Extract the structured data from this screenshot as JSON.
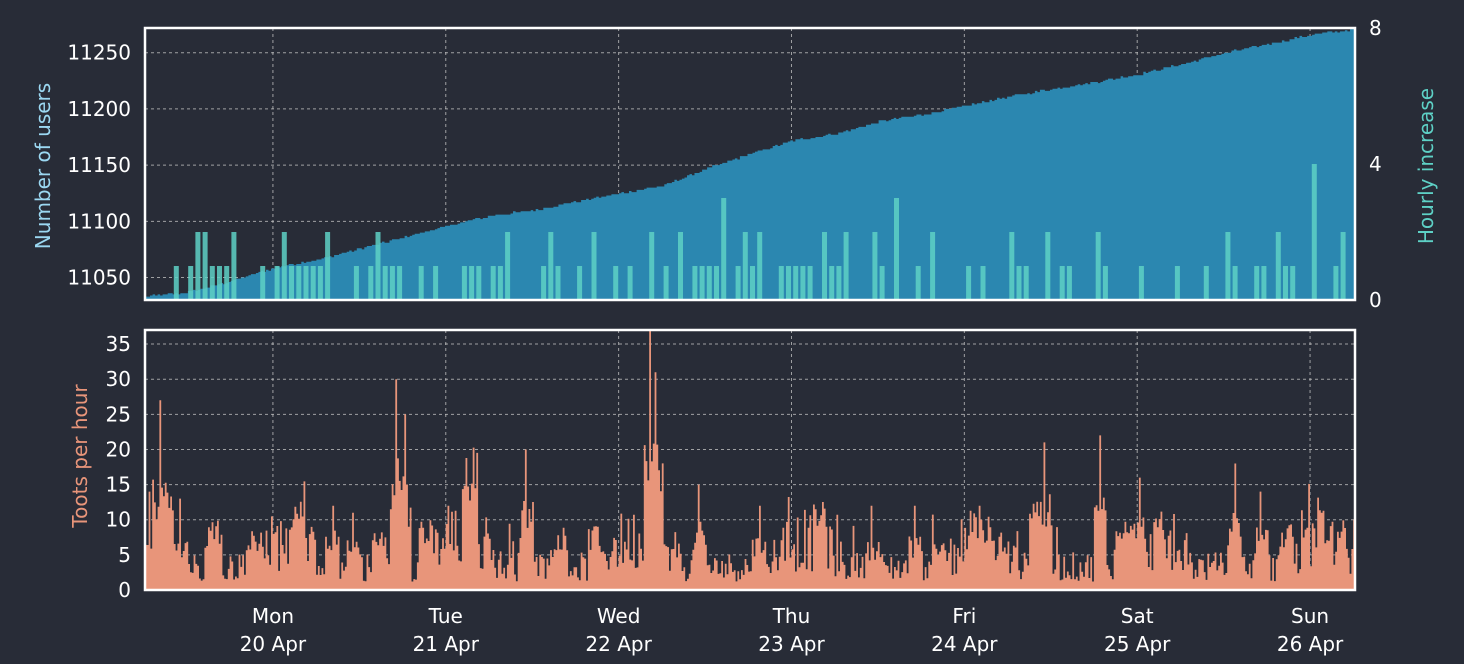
{
  "colors": {
    "background": "#282c37",
    "users_fill": "#2b87b0",
    "users_label": "#9bd8f2",
    "hourly_fill": "#5ed1c6",
    "hourly_label": "#5ed1c6",
    "toots_fill": "#e8957a",
    "toots_label": "#e8957a",
    "frame": "#ffffff",
    "grid": "#c8c8c8"
  },
  "chart_data": [
    {
      "type": "area",
      "ylabel": "Number of users",
      "y2label": "Hourly increase",
      "ylim": [
        11030,
        11272
      ],
      "y2lim": [
        0,
        8
      ],
      "yticks": [
        11050,
        11100,
        11150,
        11200,
        11250
      ],
      "y2ticks": [
        0,
        4,
        8
      ],
      "x_range_days": [
        0,
        7
      ],
      "grid": true,
      "series": [
        {
          "type": "area",
          "key": "users",
          "points": [
            [
              0,
              11033
            ],
            [
              0.25,
              11037
            ],
            [
              0.5,
              11047
            ],
            [
              0.75,
              11059
            ],
            [
              1.0,
              11066
            ],
            [
              1.25,
              11076
            ],
            [
              1.5,
              11086
            ],
            [
              1.75,
              11096
            ],
            [
              2.0,
              11105
            ],
            [
              2.25,
              11110
            ],
            [
              2.5,
              11118
            ],
            [
              2.75,
              11125
            ],
            [
              3.0,
              11132
            ],
            [
              3.25,
              11147
            ],
            [
              3.5,
              11160
            ],
            [
              3.75,
              11172
            ],
            [
              4.0,
              11178
            ],
            [
              4.25,
              11189
            ],
            [
              4.5,
              11195
            ],
            [
              4.75,
              11203
            ],
            [
              5.0,
              11211
            ],
            [
              5.25,
              11218
            ],
            [
              5.5,
              11224
            ],
            [
              5.75,
              11231
            ],
            [
              6.0,
              11240
            ],
            [
              6.25,
              11250
            ],
            [
              6.5,
              11258
            ],
            [
              6.75,
              11266
            ],
            [
              7.0,
              11271
            ]
          ]
        },
        {
          "type": "bar",
          "key": "hourly_increase",
          "axis": "y2",
          "spikes": [
            [
              0.3,
              2
            ],
            [
              0.35,
              2
            ],
            [
              0.5,
              2
            ],
            [
              0.8,
              2
            ],
            [
              1.05,
              2
            ],
            [
              1.35,
              2
            ],
            [
              2.1,
              2
            ],
            [
              2.35,
              2
            ],
            [
              2.6,
              2
            ],
            [
              2.9,
              2
            ],
            [
              3.1,
              2
            ],
            [
              3.35,
              3
            ],
            [
              3.45,
              2
            ],
            [
              3.55,
              2
            ],
            [
              3.9,
              2
            ],
            [
              4.05,
              2
            ],
            [
              4.2,
              2
            ],
            [
              4.35,
              3
            ],
            [
              4.55,
              2
            ],
            [
              5.0,
              2
            ],
            [
              5.2,
              2
            ],
            [
              5.5,
              2
            ],
            [
              6.25,
              2
            ],
            [
              6.55,
              2
            ],
            [
              6.75,
              4
            ],
            [
              6.9,
              2
            ]
          ]
        }
      ]
    },
    {
      "type": "bar",
      "ylabel": "Toots per hour",
      "ylim": [
        0,
        37
      ],
      "yticks": [
        0,
        5,
        10,
        15,
        20,
        25,
        30,
        35
      ],
      "x_range_days": [
        0,
        7
      ],
      "grid": true,
      "categories_top": [
        "Mon",
        "Tue",
        "Wed",
        "Thu",
        "Fri",
        "Sat",
        "Sun"
      ],
      "categories_bottom": [
        "20 Apr",
        "21 Apr",
        "22 Apr",
        "23 Apr",
        "24 Apr",
        "25 Apr",
        "26 Apr"
      ],
      "series": [
        {
          "key": "toots",
          "spikes": [
            [
              0.02,
              14
            ],
            [
              0.08,
              27
            ],
            [
              0.12,
              23
            ],
            [
              0.2,
              13
            ],
            [
              0.38,
              17
            ],
            [
              0.4,
              16
            ],
            [
              0.62,
              12
            ],
            [
              0.88,
              25
            ],
            [
              1.08,
              12
            ],
            [
              1.2,
              11
            ],
            [
              1.35,
              14
            ],
            [
              1.45,
              30
            ],
            [
              1.5,
              25
            ],
            [
              1.62,
              16
            ],
            [
              1.75,
              12
            ],
            [
              1.88,
              34
            ],
            [
              2.2,
              20
            ],
            [
              2.4,
              16
            ],
            [
              2.6,
              14
            ],
            [
              2.92,
              37
            ],
            [
              2.95,
              31
            ],
            [
              3.2,
              15
            ],
            [
              3.55,
              12
            ],
            [
              3.9,
              21
            ],
            [
              4.2,
              12
            ],
            [
              4.45,
              12
            ],
            [
              4.6,
              11
            ],
            [
              4.82,
              12
            ],
            [
              5.15,
              22
            ],
            [
              5.2,
              21
            ],
            [
              5.52,
              22
            ],
            [
              5.65,
              19
            ],
            [
              5.75,
              16
            ],
            [
              6.3,
              18
            ],
            [
              6.45,
              14
            ],
            [
              6.6,
              15
            ],
            [
              6.8,
              11
            ]
          ]
        }
      ]
    }
  ]
}
